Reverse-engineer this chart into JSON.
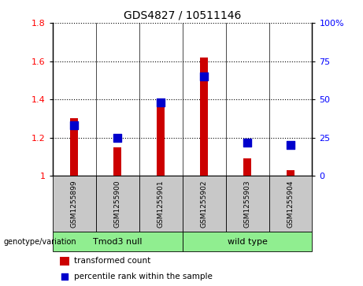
{
  "title": "GDS4827 / 10511146",
  "samples": [
    "GSM1255899",
    "GSM1255900",
    "GSM1255901",
    "GSM1255902",
    "GSM1255903",
    "GSM1255904"
  ],
  "transformed_counts": [
    1.3,
    1.15,
    1.4,
    1.62,
    1.09,
    1.03
  ],
  "percentile_ranks": [
    33,
    25,
    48,
    65,
    22,
    20
  ],
  "group1_label": "Tmod3 null",
  "group1_indices": [
    0,
    1,
    2
  ],
  "group2_label": "wild type",
  "group2_indices": [
    3,
    4,
    5
  ],
  "group_color": "#90EE90",
  "genotype_label": "genotype/variation",
  "ylim_left": [
    1.0,
    1.8
  ],
  "ylim_right": [
    0,
    100
  ],
  "yticks_left": [
    1.0,
    1.2,
    1.4,
    1.6,
    1.8
  ],
  "ytick_labels_left": [
    "1",
    "1.2",
    "1.4",
    "1.6",
    "1.8"
  ],
  "yticks_right": [
    0,
    25,
    50,
    75,
    100
  ],
  "ytick_labels_right": [
    "0",
    "25",
    "50",
    "75",
    "100%"
  ],
  "bar_color": "#CC0000",
  "dot_color": "#0000CC",
  "bar_width": 0.18,
  "dot_size": 45,
  "header_bg_color": "#C8C8C8",
  "legend_bar_label": "transformed count",
  "legend_dot_label": "percentile rank within the sample"
}
